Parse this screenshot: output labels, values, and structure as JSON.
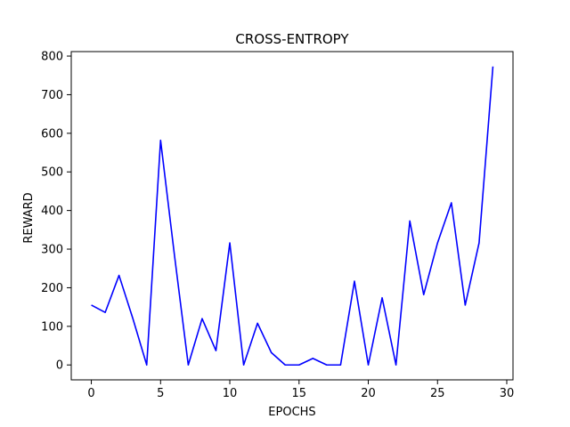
{
  "chart_data": {
    "type": "line",
    "title": "CROSS-ENTROPY",
    "xlabel": "EPOCHS",
    "ylabel": "REWARD",
    "xlim": [
      -1.45,
      30.45
    ],
    "ylim": [
      -38.6,
      811.6
    ],
    "xticks": [
      0,
      5,
      10,
      15,
      20,
      25,
      30
    ],
    "yticks": [
      0,
      100,
      200,
      300,
      400,
      500,
      600,
      700,
      800
    ],
    "grid": false,
    "series": [
      {
        "color": "#0000ff",
        "x": [
          0,
          1,
          2,
          3,
          4,
          5,
          6,
          7,
          8,
          9,
          10,
          11,
          12,
          13,
          14,
          15,
          16,
          17,
          18,
          19,
          20,
          21,
          22,
          23,
          24,
          25,
          26,
          27,
          28,
          29
        ],
        "values": [
          155,
          136,
          232,
          120,
          0,
          582,
          285,
          0,
          120,
          37,
          316,
          0,
          108,
          32,
          0,
          0,
          17,
          0,
          0,
          217,
          0,
          174,
          0,
          373,
          182,
          316,
          420,
          155,
          316,
          773
        ]
      }
    ]
  }
}
